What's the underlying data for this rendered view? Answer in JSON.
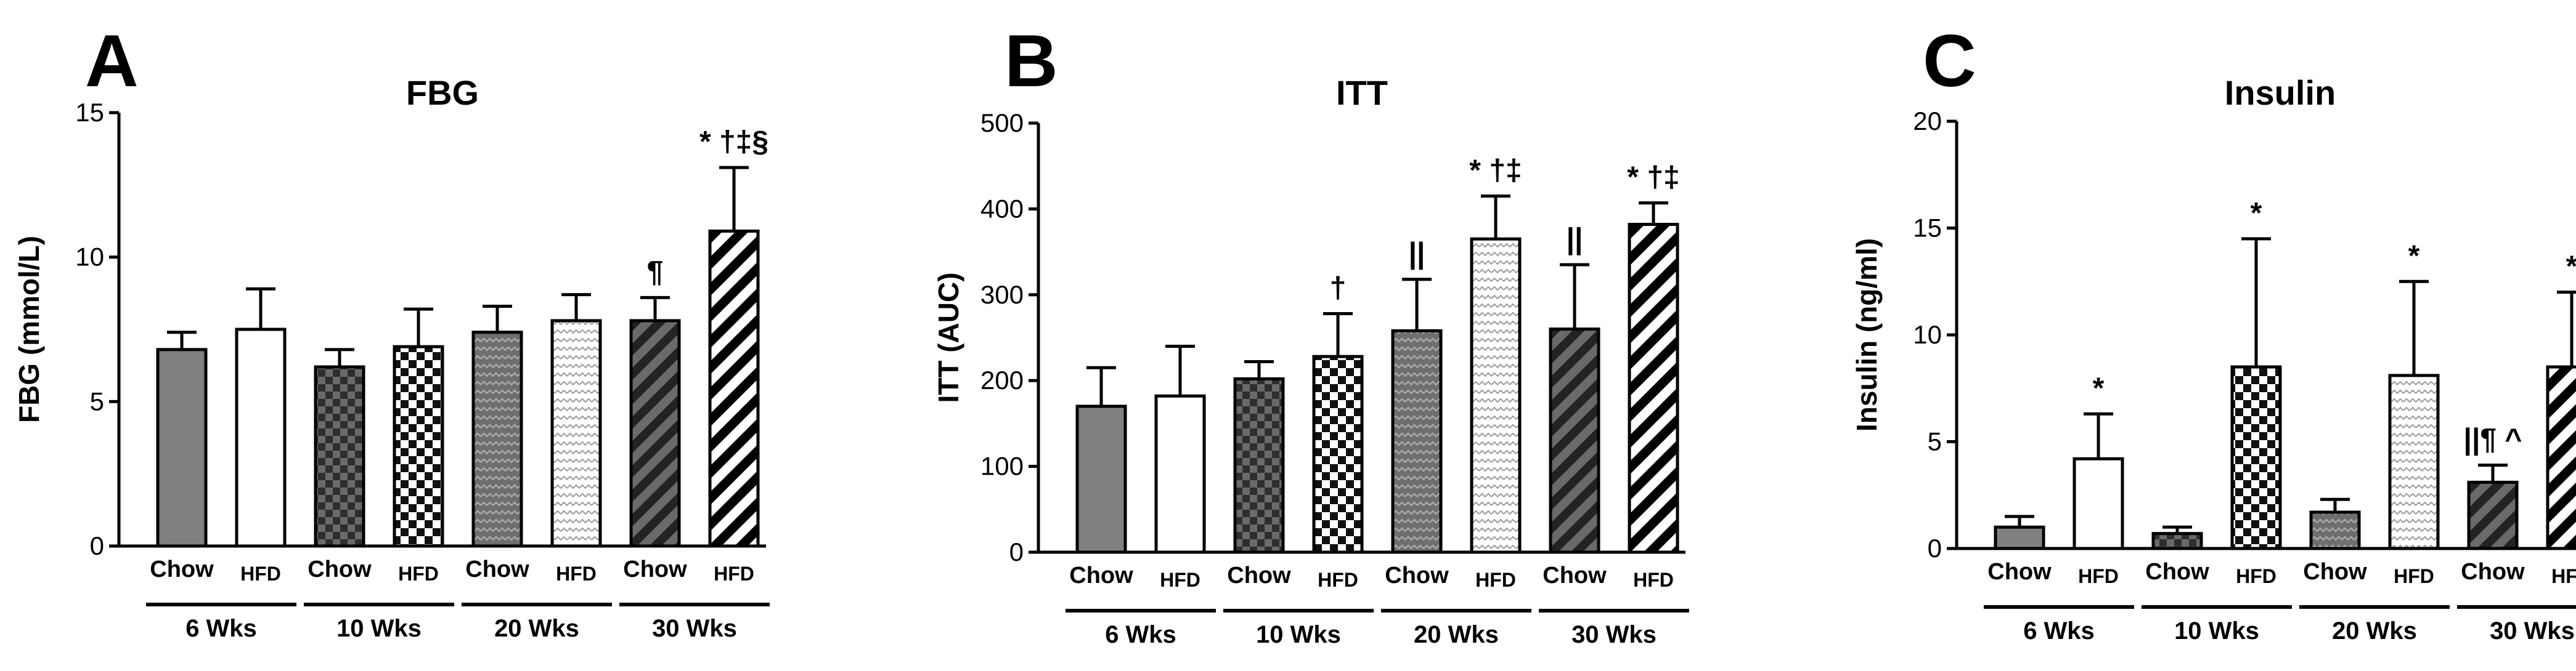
{
  "colors": {
    "ink": "#000000",
    "gray": "#808080",
    "dark": "#555555",
    "white": "#ffffff"
  },
  "group_labels": [
    "6 Wks",
    "10 Wks",
    "20 Wks",
    "30 Wks"
  ],
  "chart_data": [
    {
      "panel_letter": "A",
      "type": "bar",
      "title": "FBG",
      "ylabel": "FBG (mmol/L)",
      "xlabel": "",
      "ylim": [
        0,
        15
      ],
      "yticks": [
        0,
        5,
        10,
        15
      ],
      "categories": [
        "Chow",
        "HFD",
        "Chow",
        "HFD",
        "Chow",
        "HFD",
        "Chow",
        "HFD"
      ],
      "groups": [
        "6 Wks",
        "6 Wks",
        "10 Wks",
        "10 Wks",
        "20 Wks",
        "20 Wks",
        "30 Wks",
        "30 Wks"
      ],
      "values": [
        6.8,
        7.5,
        6.2,
        6.9,
        7.4,
        7.8,
        7.8,
        10.9
      ],
      "errors": [
        0.6,
        1.4,
        0.6,
        1.3,
        0.9,
        0.9,
        0.8,
        2.2
      ],
      "annotations": [
        "",
        "",
        "",
        "",
        "",
        "",
        "¶",
        "* †‡§"
      ],
      "grid": false
    },
    {
      "panel_letter": "B",
      "type": "bar",
      "title": "ITT",
      "ylabel": "ITT (AUC)",
      "xlabel": "",
      "ylim": [
        0,
        500
      ],
      "yticks": [
        0,
        100,
        200,
        300,
        400,
        500
      ],
      "categories": [
        "Chow",
        "HFD",
        "Chow",
        "HFD",
        "Chow",
        "HFD",
        "Chow",
        "HFD"
      ],
      "groups": [
        "6 Wks",
        "6 Wks",
        "10 Wks",
        "10 Wks",
        "20 Wks",
        "20 Wks",
        "30 Wks",
        "30 Wks"
      ],
      "values": [
        170,
        182,
        202,
        228,
        258,
        365,
        260,
        382
      ],
      "errors": [
        45,
        58,
        20,
        50,
        60,
        50,
        75,
        25
      ],
      "annotations": [
        "",
        "",
        "",
        "†",
        "||",
        "* †‡",
        "||",
        "* †‡"
      ],
      "grid": false
    },
    {
      "panel_letter": "C",
      "type": "bar",
      "title": "Insulin",
      "ylabel": "Insulin (ng/ml)",
      "xlabel": "",
      "ylim": [
        0,
        20
      ],
      "yticks": [
        0,
        5,
        10,
        15,
        20
      ],
      "categories": [
        "Chow",
        "HFD",
        "Chow",
        "HFD",
        "Chow",
        "HFD",
        "Chow",
        "HFD"
      ],
      "groups": [
        "6 Wks",
        "6 Wks",
        "10 Wks",
        "10 Wks",
        "20 Wks",
        "20 Wks",
        "30 Wks",
        "30 Wks"
      ],
      "values": [
        1.0,
        4.2,
        0.7,
        8.5,
        1.7,
        8.1,
        3.1,
        8.5
      ],
      "errors": [
        0.5,
        2.1,
        0.3,
        6.0,
        0.6,
        4.4,
        0.8,
        3.5
      ],
      "annotations": [
        "",
        "*",
        "",
        "*",
        "",
        "*",
        "||¶ ^",
        "*"
      ],
      "grid": false
    }
  ]
}
